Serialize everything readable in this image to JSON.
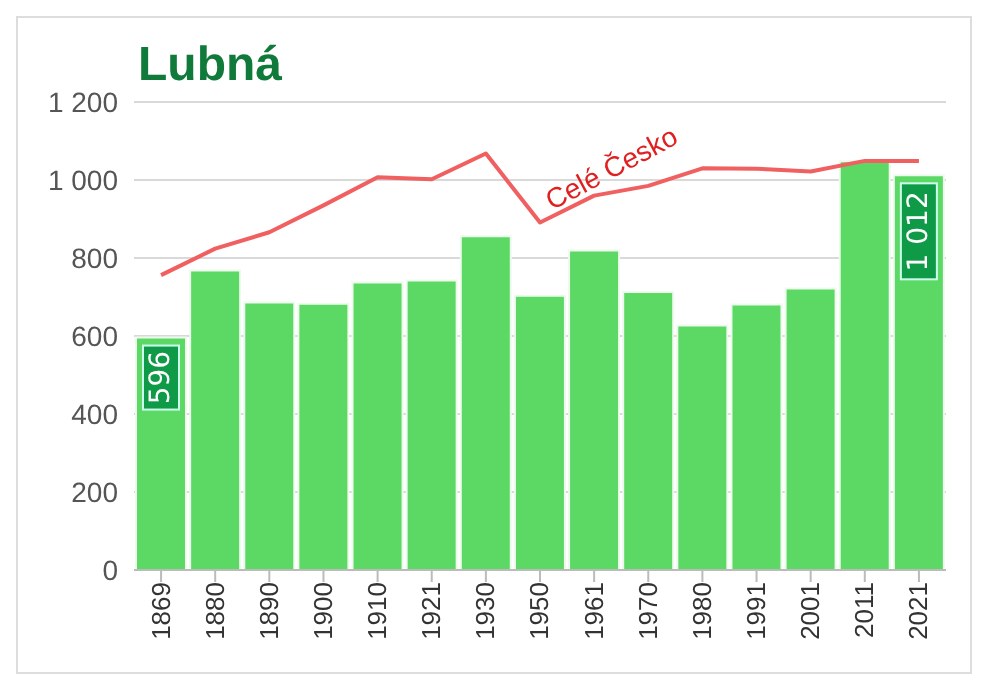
{
  "chart_data": {
    "type": "bar",
    "title": "Lubná",
    "categories": [
      "1869",
      "1880",
      "1890",
      "1900",
      "1910",
      "1921",
      "1930",
      "1950",
      "1961",
      "1970",
      "1980",
      "1991",
      "2001",
      "2011",
      "2021"
    ],
    "series": [
      {
        "color": "#5cd965",
        "values": [
          596,
          768,
          686,
          683,
          737,
          742,
          856,
          703,
          819,
          713,
          627,
          681,
          722,
          1048,
          1012
        ],
        "value_labels": [
          "596",
          null,
          null,
          null,
          null,
          null,
          null,
          null,
          null,
          null,
          null,
          null,
          null,
          null,
          "1 012"
        ]
      },
      {
        "type": "line",
        "name": "Celé Česko",
        "color": "#f06060",
        "values": [
          756,
          824,
          866,
          935,
          1007,
          1002,
          1068,
          891,
          960,
          985,
          1030,
          1029,
          1022,
          1049,
          1049
        ]
      }
    ],
    "ylim": [
      0,
      1200
    ],
    "yticks": [
      0,
      200,
      400,
      600,
      800,
      {
        "value": 1000,
        "label": "1 000"
      },
      {
        "value": 1200,
        "label": "1 200"
      }
    ],
    "grid": "y",
    "legend": false,
    "marker": "none",
    "line_style": "solid"
  }
}
